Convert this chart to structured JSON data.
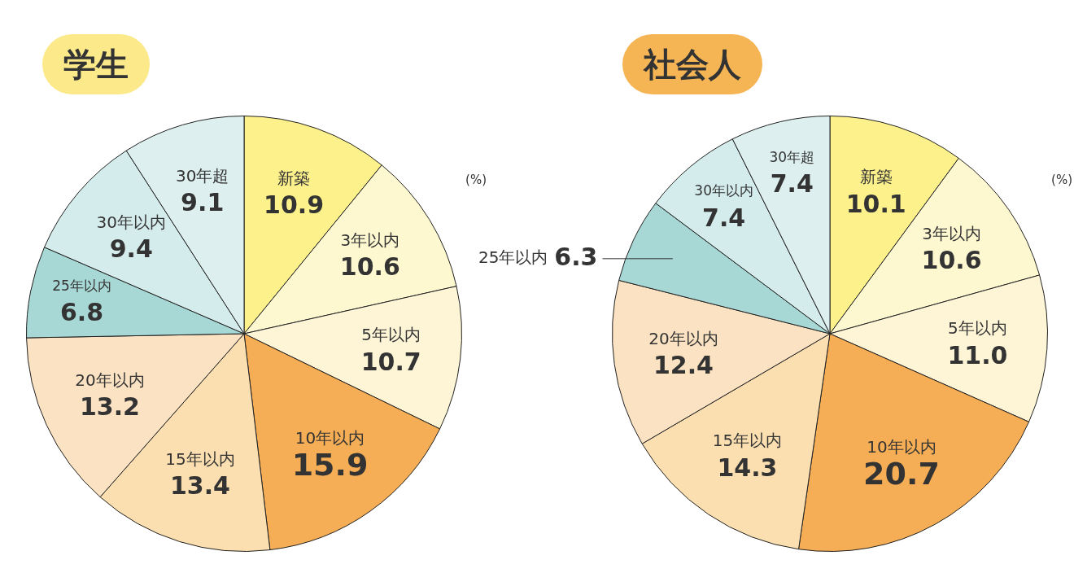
{
  "chart_data": [
    {
      "type": "pie",
      "title": "学生",
      "categories": [
        "新築",
        "3年以内",
        "5年以内",
        "10年以内",
        "15年以内",
        "20年以内",
        "25年以内",
        "30年以内",
        "30年超"
      ],
      "values": [
        10.9,
        10.6,
        10.7,
        15.9,
        13.4,
        13.2,
        6.8,
        9.4,
        9.1
      ],
      "value_labels": [
        "10.9",
        "10.6",
        "10.7",
        "15.9",
        "13.4",
        "13.2",
        "6.8",
        "9.4",
        "9.1"
      ],
      "colors": [
        "#fdf18c",
        "#fef8d0",
        "#fdf5d6",
        "#f5ae55",
        "#fbdfb0",
        "#fae2c2",
        "#a8d8d5",
        "#d5ecec",
        "#ddefee"
      ],
      "annotations": [
        "(%)"
      ],
      "legend": false
    },
    {
      "type": "pie",
      "title": "社会人",
      "categories": [
        "新築",
        "3年以内",
        "5年以内",
        "10年以内",
        "15年以内",
        "20年以内",
        "25年以内",
        "30年以内",
        "30年超"
      ],
      "values": [
        10.1,
        10.6,
        11.0,
        20.7,
        14.3,
        12.4,
        6.3,
        7.4,
        7.4
      ],
      "value_labels": [
        "10.1",
        "10.6",
        "11.0",
        "20.7",
        "14.3",
        "12.4",
        "6.3",
        "7.4",
        "7.4"
      ],
      "colors": [
        "#fdf18c",
        "#fef8d0",
        "#fdf5d6",
        "#f5ae55",
        "#fbdfb0",
        "#fae2c2",
        "#a8d8d5",
        "#d5ecec",
        "#ddefee"
      ],
      "annotations": [
        "(%)"
      ],
      "legend": false
    }
  ]
}
